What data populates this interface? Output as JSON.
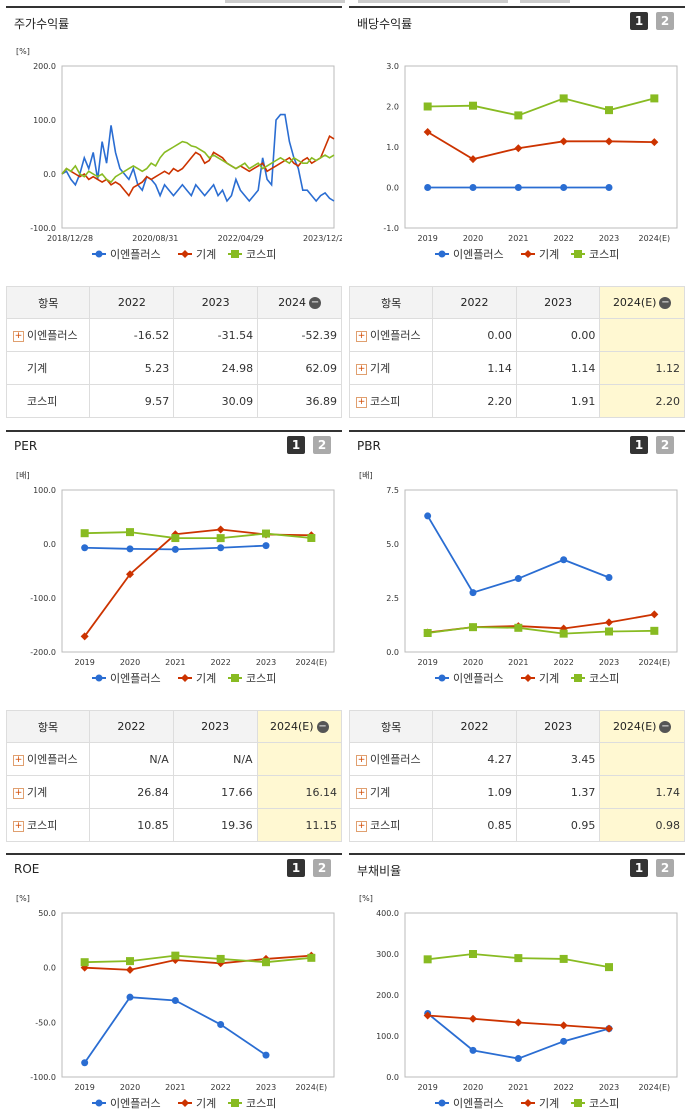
{
  "colors": {
    "enplus": "#2a6dd2",
    "machine": "#cc3300",
    "kospi": "#88bb22"
  },
  "legend": [
    "이엔플러스",
    "기계",
    "코스피"
  ],
  "panels": {
    "stock": {
      "title": "주가수익률",
      "unit": "[%]"
    },
    "dividend": {
      "title": "배당수익률",
      "unit": ""
    },
    "per": {
      "title": "PER",
      "unit": "[배]"
    },
    "pbr": {
      "title": "PBR",
      "unit": "[배]"
    },
    "roe": {
      "title": "ROE",
      "unit": "[%]"
    },
    "debt": {
      "title": "부채비율",
      "unit": "[%]"
    }
  },
  "buttons": {
    "one": "1",
    "two": "2"
  },
  "chart_data": [
    {
      "id": "stock",
      "type": "line",
      "title": "주가수익률",
      "ylabel": "[%]",
      "ylim": [
        -100,
        200
      ],
      "yticks": [
        "200.0",
        "100.0",
        "0.0",
        "-100.0"
      ],
      "xticks": [
        "2018/12/28",
        "2020/08/31",
        "2022/04/29",
        "2023/12/28"
      ],
      "series": [
        {
          "name": "이엔플러스",
          "values": [
            0,
            5,
            -10,
            -20,
            0,
            30,
            10,
            40,
            -10,
            60,
            20,
            90,
            40,
            10,
            0,
            -10,
            10,
            -20,
            -30,
            -5,
            -10,
            -20,
            -40,
            -20,
            -30,
            -40,
            -30,
            -20,
            -30,
            -40,
            -20,
            -30,
            -40,
            -30,
            -20,
            -40,
            -30,
            -50,
            -40,
            -10,
            -30,
            -40,
            -50,
            -40,
            -30,
            30,
            -10,
            -20,
            100,
            110,
            110,
            60,
            30,
            10,
            -30,
            -30,
            -40,
            -50,
            -40,
            -35,
            -45,
            -50
          ]
        },
        {
          "name": "기계",
          "values": [
            0,
            10,
            5,
            0,
            -5,
            0,
            -10,
            -5,
            -10,
            -15,
            -10,
            -20,
            -15,
            -20,
            -30,
            -40,
            -25,
            -20,
            -15,
            -5,
            -10,
            -5,
            0,
            5,
            0,
            10,
            5,
            10,
            20,
            30,
            40,
            35,
            20,
            25,
            40,
            35,
            30,
            20,
            15,
            10,
            15,
            10,
            5,
            10,
            15,
            20,
            5,
            10,
            15,
            20,
            25,
            30,
            20,
            15,
            25,
            30,
            20,
            25,
            30,
            50,
            70,
            65
          ]
        },
        {
          "name": "코스피",
          "values": [
            0,
            10,
            5,
            15,
            0,
            -5,
            5,
            0,
            -5,
            0,
            -10,
            -15,
            -5,
            0,
            5,
            10,
            15,
            10,
            5,
            10,
            20,
            15,
            30,
            40,
            45,
            50,
            55,
            60,
            58,
            52,
            50,
            45,
            40,
            30,
            35,
            30,
            25,
            20,
            15,
            10,
            15,
            20,
            10,
            15,
            20,
            10,
            15,
            20,
            25,
            30,
            25,
            20,
            30,
            25,
            20,
            20,
            30,
            25,
            30,
            35,
            30,
            35
          ]
        }
      ]
    },
    {
      "id": "dividend",
      "type": "line",
      "title": "배당수익률",
      "ylim": [
        -1,
        3
      ],
      "yticks": [
        "3.0",
        "2.0",
        "1.0",
        "0.0",
        "-1.0"
      ],
      "categories": [
        "2019",
        "2020",
        "2021",
        "2022",
        "2023",
        "2024(E)"
      ],
      "series": [
        {
          "name": "이엔플러스",
          "values": [
            0,
            0,
            0,
            0,
            0,
            null
          ]
        },
        {
          "name": "기계",
          "values": [
            1.37,
            0.7,
            0.97,
            1.14,
            1.14,
            1.12
          ]
        },
        {
          "name": "코스피",
          "values": [
            2.0,
            2.02,
            1.78,
            2.2,
            1.91,
            2.2
          ]
        }
      ]
    },
    {
      "id": "per",
      "type": "line",
      "title": "PER",
      "ylabel": "[배]",
      "ylim": [
        -200,
        100
      ],
      "yticks": [
        "100.0",
        "0.0",
        "-100.0",
        "-200.0"
      ],
      "categories": [
        "2019",
        "2020",
        "2021",
        "2022",
        "2023",
        "2024(E)"
      ],
      "series": [
        {
          "name": "이엔플러스",
          "values": [
            -7,
            -9,
            -10,
            -7,
            -3,
            null
          ]
        },
        {
          "name": "기계",
          "values": [
            -171,
            -56,
            18,
            26.84,
            17.66,
            16.14
          ]
        },
        {
          "name": "코스피",
          "values": [
            20,
            22,
            11,
            10.85,
            19.36,
            11.15
          ]
        }
      ]
    },
    {
      "id": "pbr",
      "type": "line",
      "title": "PBR",
      "ylabel": "[배]",
      "ylim": [
        0,
        7.5
      ],
      "yticks": [
        "7.5",
        "5.0",
        "2.5",
        "0.0"
      ],
      "categories": [
        "2019",
        "2020",
        "2021",
        "2022",
        "2023",
        "2024(E)"
      ],
      "series": [
        {
          "name": "이엔플러스",
          "values": [
            6.3,
            2.75,
            3.4,
            4.27,
            3.45,
            null
          ]
        },
        {
          "name": "기계",
          "values": [
            0.9,
            1.15,
            1.2,
            1.09,
            1.37,
            1.74
          ]
        },
        {
          "name": "코스피",
          "values": [
            0.88,
            1.15,
            1.12,
            0.85,
            0.95,
            0.98
          ]
        }
      ]
    },
    {
      "id": "roe",
      "type": "line",
      "title": "ROE",
      "ylabel": "[%]",
      "ylim": [
        -100,
        50
      ],
      "yticks": [
        "50.0",
        "0.0",
        "-50.0",
        "-100.0"
      ],
      "categories": [
        "2019",
        "2020",
        "2021",
        "2022",
        "2023",
        "2024(E)"
      ],
      "series": [
        {
          "name": "이엔플러스",
          "values": [
            -87,
            -27,
            -30,
            -52,
            -80,
            null
          ]
        },
        {
          "name": "기계",
          "values": [
            0,
            -2,
            7,
            4,
            8,
            11
          ]
        },
        {
          "name": "코스피",
          "values": [
            5,
            6,
            11,
            8,
            5,
            9
          ]
        }
      ]
    },
    {
      "id": "debt",
      "type": "line",
      "title": "부채비율",
      "ylabel": "[%]",
      "ylim": [
        0,
        400
      ],
      "yticks": [
        "400.0",
        "300.0",
        "200.0",
        "100.0",
        "0.0"
      ],
      "categories": [
        "2019",
        "2020",
        "2021",
        "2022",
        "2023",
        "2024(E)"
      ],
      "series": [
        {
          "name": "이엔플러스",
          "values": [
            155,
            65,
            45,
            87,
            118,
            null
          ]
        },
        {
          "name": "기계",
          "values": [
            150,
            142,
            133,
            126,
            118,
            null
          ]
        },
        {
          "name": "코스피",
          "values": [
            287,
            300,
            290,
            288,
            268,
            null
          ]
        }
      ]
    }
  ],
  "tables": {
    "stock": {
      "header": [
        "항목",
        "2022",
        "2023",
        "2024"
      ],
      "rows": [
        {
          "label": "이엔플러스",
          "plus": true,
          "values": [
            "-16.52",
            "-31.54",
            "-52.39"
          ]
        },
        {
          "label": "기계",
          "plus": false,
          "values": [
            "5.23",
            "24.98",
            "62.09"
          ]
        },
        {
          "label": "코스피",
          "plus": false,
          "values": [
            "9.57",
            "30.09",
            "36.89"
          ]
        }
      ]
    },
    "dividend": {
      "header": [
        "항목",
        "2022",
        "2023",
        "2024(E)"
      ],
      "rows": [
        {
          "label": "이엔플러스",
          "plus": true,
          "values": [
            "0.00",
            "0.00",
            ""
          ]
        },
        {
          "label": "기계",
          "plus": true,
          "values": [
            "1.14",
            "1.14",
            "1.12"
          ]
        },
        {
          "label": "코스피",
          "plus": true,
          "values": [
            "2.20",
            "1.91",
            "2.20"
          ]
        }
      ]
    },
    "per": {
      "header": [
        "항목",
        "2022",
        "2023",
        "2024(E)"
      ],
      "rows": [
        {
          "label": "이엔플러스",
          "plus": true,
          "values": [
            "N/A",
            "N/A",
            ""
          ]
        },
        {
          "label": "기계",
          "plus": true,
          "values": [
            "26.84",
            "17.66",
            "16.14"
          ]
        },
        {
          "label": "코스피",
          "plus": true,
          "values": [
            "10.85",
            "19.36",
            "11.15"
          ]
        }
      ]
    },
    "pbr": {
      "header": [
        "항목",
        "2022",
        "2023",
        "2024(E)"
      ],
      "rows": [
        {
          "label": "이엔플러스",
          "plus": true,
          "values": [
            "4.27",
            "3.45",
            ""
          ]
        },
        {
          "label": "기계",
          "plus": true,
          "values": [
            "1.09",
            "1.37",
            "1.74"
          ]
        },
        {
          "label": "코스피",
          "plus": true,
          "values": [
            "0.85",
            "0.95",
            "0.98"
          ]
        }
      ]
    }
  }
}
